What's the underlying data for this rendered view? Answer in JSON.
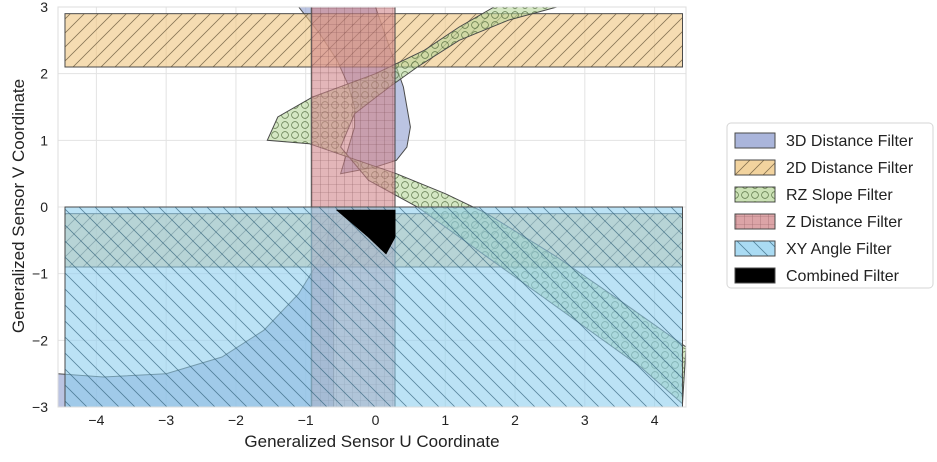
{
  "chart_data": {
    "type": "area",
    "title": "",
    "xlabel": "Generalized Sensor U Coordinate",
    "ylabel": "Generalized Sensor V Coordinate",
    "xlim": [
      -4.55,
      4.45
    ],
    "ylim": [
      -3,
      3
    ],
    "xticks": [
      -4,
      -3,
      -2,
      -1,
      0,
      1,
      2,
      3,
      4
    ],
    "yticks": [
      -3,
      -2,
      -1,
      0,
      1,
      2,
      3
    ],
    "grid": true,
    "legend_position": "right",
    "series": [
      {
        "name": "3D Distance Filter",
        "color": "#8e9ccf",
        "hatch": "none",
        "shape": "two lobes: a narrow vertical lens between u≈-1.1 and u≈0.5 (v 1.5 to 3), and a large quarter-disc in the lower-left",
        "polygons": [
          [
            [
              -1.1,
              3.0
            ],
            [
              -0.8,
              2.6
            ],
            [
              -0.55,
              2.2
            ],
            [
              -0.4,
              1.85
            ],
            [
              -0.3,
              1.5
            ],
            [
              -0.3,
              1.2
            ],
            [
              -0.4,
              0.85
            ],
            [
              -0.5,
              0.5
            ],
            [
              0.0,
              0.6
            ],
            [
              0.3,
              0.7
            ],
            [
              0.45,
              0.9
            ],
            [
              0.5,
              1.2
            ],
            [
              0.45,
              1.5
            ],
            [
              0.4,
              1.8
            ],
            [
              0.3,
              2.1
            ],
            [
              0.2,
              2.4
            ],
            [
              0.1,
              2.7
            ],
            [
              0.0,
              3.0
            ]
          ],
          [
            [
              -0.6,
              -0.1
            ],
            [
              -0.75,
              -0.7
            ],
            [
              -1.1,
              -1.3
            ],
            [
              -1.6,
              -1.85
            ],
            [
              -2.2,
              -2.25
            ],
            [
              -3.0,
              -2.5
            ],
            [
              -3.9,
              -2.55
            ],
            [
              -4.55,
              -2.5
            ],
            [
              -4.55,
              -3.0
            ],
            [
              -0.6,
              -3.0
            ]
          ]
        ]
      },
      {
        "name": "2D Distance Filter",
        "color": "#eec47e",
        "hatch": "diagonal",
        "bands": [
          {
            "x": [
              -4.45,
              4.4
            ],
            "y": [
              2.1,
              2.9
            ]
          },
          {
            "x": [
              -4.45,
              4.4
            ],
            "y": [
              -0.9,
              -0.1
            ]
          }
        ]
      },
      {
        "name": "RZ Slope Filter",
        "color": "#b9d79c",
        "hatch": "circles",
        "polygon": [
          [
            2.6,
            3.0
          ],
          [
            1.9,
            2.8
          ],
          [
            1.2,
            2.5
          ],
          [
            0.6,
            2.1
          ],
          [
            0.2,
            1.8
          ],
          [
            -0.3,
            1.4
          ],
          [
            -0.5,
            0.9
          ],
          [
            -0.1,
            0.4
          ],
          [
            0.6,
            0.0
          ],
          [
            1.4,
            -0.6
          ],
          [
            2.2,
            -1.2
          ],
          [
            3.0,
            -1.8
          ],
          [
            3.8,
            -2.4
          ],
          [
            4.4,
            -2.95
          ],
          [
            4.45,
            -2.1
          ],
          [
            3.5,
            -1.4
          ],
          [
            2.6,
            -0.75
          ],
          [
            1.6,
            -0.1
          ],
          [
            1.0,
            0.2
          ],
          [
            0.3,
            0.5
          ],
          [
            -0.95,
            0.95
          ],
          [
            -1.55,
            1.0
          ],
          [
            -1.4,
            1.35
          ],
          [
            -0.9,
            1.65
          ],
          [
            0.0,
            2.0
          ],
          [
            0.7,
            2.35
          ],
          [
            1.2,
            2.7
          ],
          [
            1.7,
            3.0
          ]
        ]
      },
      {
        "name": "Z Distance Filter",
        "color": "#d0868a",
        "hatch": "grid",
        "bands": [
          {
            "x": [
              -0.92,
              0.28
            ],
            "y": [
              -3.0,
              3.0
            ]
          }
        ]
      },
      {
        "name": "XY Angle Filter",
        "color": "#8ecfef",
        "hatch": "backslash",
        "polygons": [
          [
            [
              -4.45,
              0.0
            ],
            [
              4.4,
              0.0
            ],
            [
              4.4,
              -3.0
            ],
            [
              -4.45,
              -3.0
            ]
          ]
        ]
      },
      {
        "name": "Combined Filter",
        "color": "#000000",
        "hatch": "none",
        "polygon": [
          [
            -0.55,
            -0.05
          ],
          [
            0.28,
            -0.05
          ],
          [
            0.28,
            -0.45
          ],
          [
            0.15,
            -0.7
          ],
          [
            -0.1,
            -0.45
          ]
        ]
      }
    ]
  }
}
